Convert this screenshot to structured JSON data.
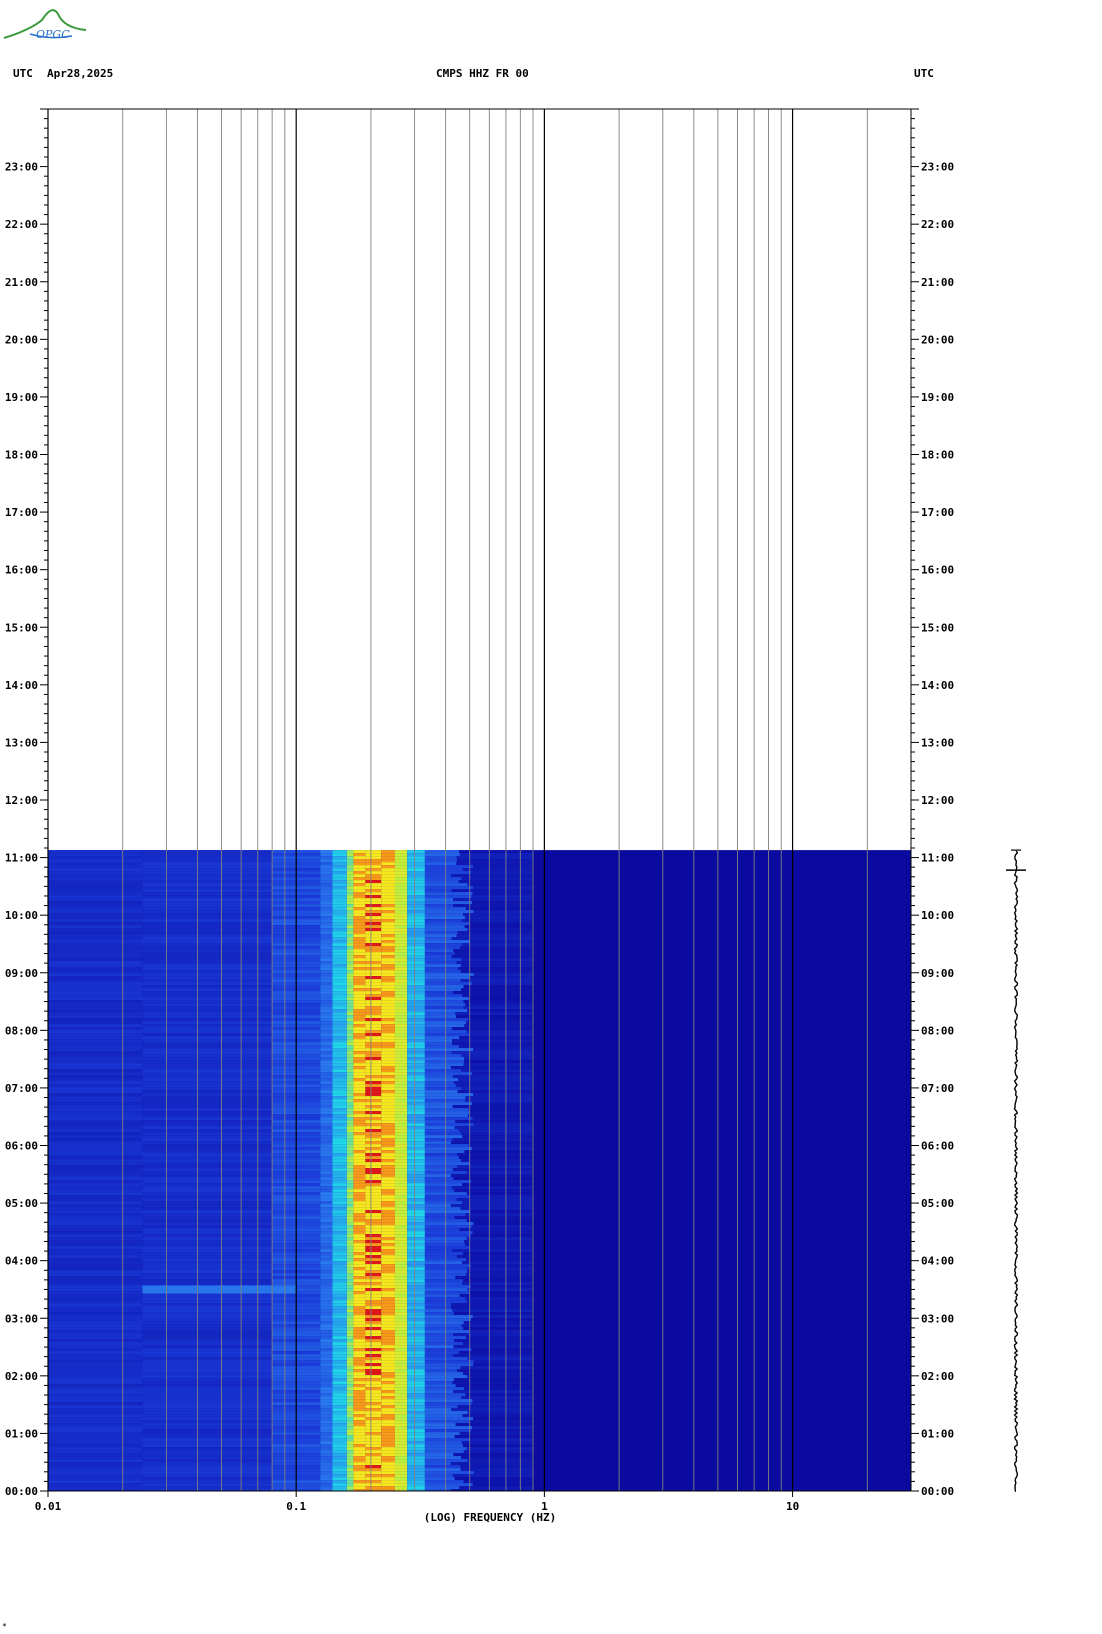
{
  "logo": {
    "text": "OPGC"
  },
  "header": {
    "left_utc": "UTC",
    "date": "Apr28,2025",
    "station": "CMPS HHZ FR 00",
    "right_utc": "UTC"
  },
  "footer_mark": "*",
  "chart_data": {
    "type": "heatmap",
    "title": "CMPS HHZ FR 00",
    "xlabel": "(LOG) FREQUENCY (HZ)",
    "ylabel": "UTC",
    "x_scale": "log",
    "xlim": [
      0.01,
      30
    ],
    "ylim_hours": [
      0,
      24
    ],
    "x_ticks": [
      "0.01",
      "0.1",
      "1",
      "10"
    ],
    "x_tick_values": [
      0.01,
      0.1,
      1,
      10
    ],
    "y_tick_labels": [
      "00:00",
      "01:00",
      "02:00",
      "03:00",
      "04:00",
      "05:00",
      "06:00",
      "07:00",
      "08:00",
      "09:00",
      "10:00",
      "11:00",
      "12:00",
      "13:00",
      "14:00",
      "15:00",
      "16:00",
      "17:00",
      "18:00",
      "19:00",
      "20:00",
      "21:00",
      "22:00",
      "23:00"
    ],
    "data_end_hour": 11.13,
    "spectral_bands": [
      {
        "f_min": 0.01,
        "f_max": 0.125,
        "level": "blue"
      },
      {
        "f_max": 0.14,
        "level": "light-blue"
      },
      {
        "f_max": 0.16,
        "level": "cyan"
      },
      {
        "f_max": 0.17,
        "level": "yellow-green"
      },
      {
        "f_max": 0.25,
        "level": "yellow-orange-red"
      },
      {
        "f_max": 0.28,
        "level": "yellow-green"
      },
      {
        "f_max": 0.33,
        "level": "cyan"
      },
      {
        "f_max": 0.5,
        "level": "blue"
      },
      {
        "f_max": 30,
        "level": "dark-blue"
      }
    ],
    "events": [
      {
        "hour": 3.5,
        "f_min": 0.024,
        "f_max": 0.1
      }
    ],
    "colors": {
      "dark_blue": "#0a0aa0",
      "blue": "#1a3ad8",
      "light_blue": "#2a7cf0",
      "cyan": "#20d8e8",
      "yellow_green": "#b8f040",
      "yellow": "#f6e81c",
      "orange": "#f89a18",
      "red": "#e01818",
      "grid": "#808080"
    }
  }
}
